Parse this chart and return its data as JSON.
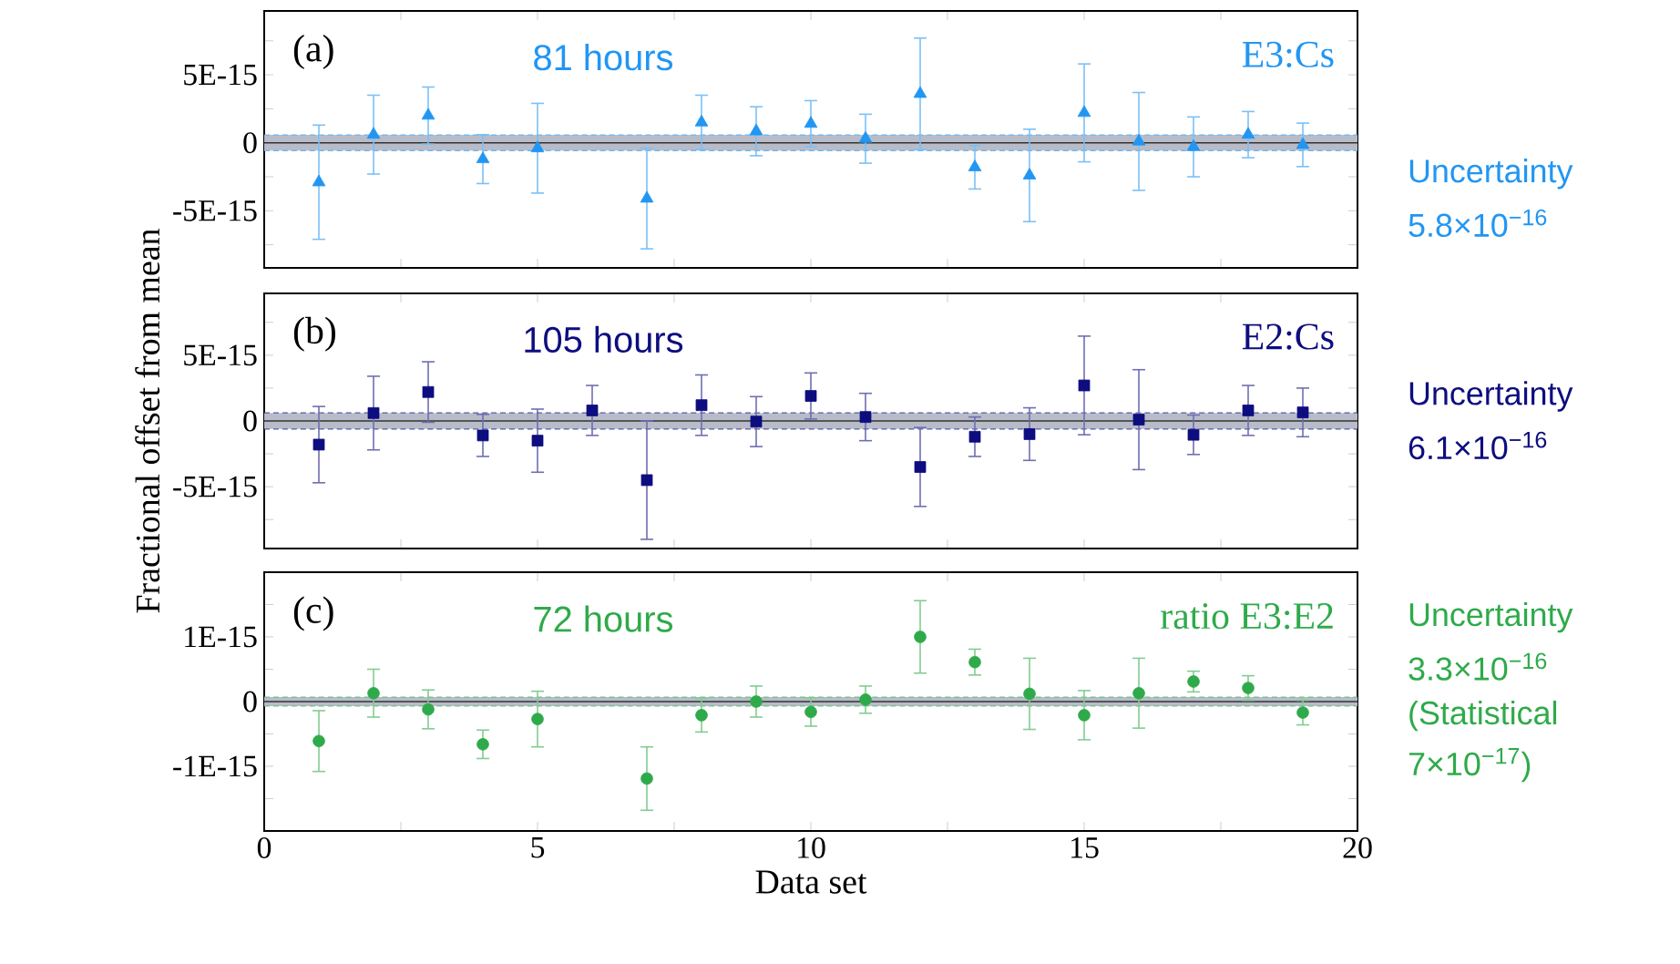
{
  "chart_data": [
    {
      "type": "scatter",
      "marker": "triangle",
      "x": [
        1,
        2,
        3,
        4,
        5,
        6,
        7,
        8,
        9,
        10,
        11,
        12,
        13,
        14,
        15,
        16,
        17,
        18,
        19
      ],
      "series": [
        {
          "name": "E3:Cs",
          "color": "#2196f3",
          "values": [
            -2.9e-15,
            6e-16,
            2e-15,
            -1.2e-15,
            -4e-16,
            null,
            -4.1e-15,
            1.5e-15,
            8.5e-16,
            1.4e-15,
            3e-16,
            3.6e-15,
            -1.8e-15,
            -2.4e-15,
            2.2e-15,
            1e-16,
            -3e-16,
            6e-16,
            -1.5e-16
          ],
          "errors": [
            4.2e-15,
            2.9e-15,
            2.1e-15,
            1.8e-15,
            3.3e-15,
            null,
            3.7e-15,
            2e-15,
            1.8e-15,
            1.7e-15,
            1.8e-15,
            4.1e-15,
            1.6e-15,
            3.4e-15,
            3.6e-15,
            3.6e-15,
            2.2e-15,
            1.7e-15,
            1.6e-15
          ]
        }
      ],
      "xlim": [
        0,
        20
      ],
      "xticks": [
        0,
        {
          "value": 2.5,
          "label": null
        },
        5,
        {
          "value": 7.5,
          "label": null
        },
        10,
        {
          "value": 12.5,
          "label": null
        },
        15,
        {
          "value": 17.5,
          "label": null
        },
        20
      ],
      "ylim": [
        -9.2e-15,
        9.7e-15
      ],
      "yticks": [
        {
          "value": -7.5e-15,
          "label": null
        },
        {
          "value": -5e-15,
          "label": "-5E-15"
        },
        {
          "value": -2.5e-15,
          "label": null
        },
        0,
        {
          "value": 2.5e-15,
          "label": null
        },
        {
          "value": 5e-15,
          "label": "5E-15"
        },
        {
          "value": 7.5e-15,
          "label": null
        }
      ],
      "tick_labels": "y",
      "bands": [
        {
          "axis": "y",
          "from": -5.8e-16,
          "to": 5.8e-16,
          "color": "#b8bcc8"
        }
      ],
      "ref_lines": [
        {
          "axis": "y",
          "value": 0,
          "color": "#333333"
        },
        {
          "axis": "y",
          "value": -5.8e-16,
          "color": "#64b6f7",
          "line_style": "dashed"
        },
        {
          "axis": "y",
          "value": 5.8e-16,
          "color": "#64b6f7",
          "line_style": "dashed"
        }
      ],
      "annotations": [
        "(a)",
        "81 hours",
        "Uncertainty",
        "5.8×10$^{−16}$"
      ]
    },
    {
      "type": "scatter",
      "marker": "square",
      "x": [
        1,
        2,
        3,
        4,
        5,
        6,
        7,
        8,
        9,
        10,
        11,
        12,
        13,
        14,
        15,
        16,
        17,
        18,
        19
      ],
      "ylabel": "Fractional offset from mean",
      "series": [
        {
          "name": "E2:Cs",
          "color": "#0d0d80",
          "values": [
            -1.8e-15,
            6e-16,
            2.2e-15,
            -1.1e-15,
            -1.5e-15,
            8e-16,
            -4.5e-15,
            1.2e-15,
            -5e-17,
            1.9e-15,
            3e-16,
            -3.5e-15,
            -1.2e-15,
            -1e-15,
            2.7e-15,
            1e-16,
            -1.05e-15,
            8e-16,
            6.5e-16
          ],
          "errors": [
            2.9e-15,
            2.8e-15,
            2.3e-15,
            1.6e-15,
            2.4e-15,
            1.9e-15,
            4.5e-15,
            2.3e-15,
            1.9e-15,
            1.75e-15,
            1.8e-15,
            3e-15,
            1.5e-15,
            2e-15,
            3.75e-15,
            3.8e-15,
            1.5e-15,
            1.9e-15,
            1.85e-15
          ]
        }
      ],
      "xlim": [
        0,
        20
      ],
      "xticks": [
        0,
        {
          "value": 2.5,
          "label": null
        },
        5,
        {
          "value": 7.5,
          "label": null
        },
        10,
        {
          "value": 12.5,
          "label": null
        },
        15,
        {
          "value": 17.5,
          "label": null
        },
        20
      ],
      "ylim": [
        -9.7e-15,
        9.7e-15
      ],
      "yticks": [
        {
          "value": -7.5e-15,
          "label": null
        },
        {
          "value": -5e-15,
          "label": "-5E-15"
        },
        {
          "value": -2.5e-15,
          "label": null
        },
        0,
        {
          "value": 2.5e-15,
          "label": null
        },
        {
          "value": 5e-15,
          "label": "5E-15"
        },
        {
          "value": 7.5e-15,
          "label": null
        }
      ],
      "tick_labels": "y",
      "bands": [
        {
          "axis": "y",
          "from": -6.1e-16,
          "to": 6.1e-16,
          "color": "#b8bcc8"
        }
      ],
      "ref_lines": [
        {
          "axis": "y",
          "value": 0,
          "color": "#333333"
        },
        {
          "axis": "y",
          "value": -6.1e-16,
          "color": "#5656a6",
          "line_style": "dashed"
        },
        {
          "axis": "y",
          "value": 6.1e-16,
          "color": "#5656a6",
          "line_style": "dashed"
        }
      ],
      "annotations": [
        "(b)",
        "105 hours",
        "Uncertainty",
        "6.1×10$^{−16}$"
      ]
    },
    {
      "type": "scatter",
      "marker": "circle",
      "x": [
        1,
        2,
        3,
        4,
        5,
        6,
        7,
        8,
        9,
        10,
        11,
        12,
        13,
        14,
        15,
        16,
        17,
        18,
        19
      ],
      "xlabel": "Data set",
      "series": [
        {
          "name": "ratio E3:E2",
          "color": "#2eaa4a",
          "values": [
            -6.1e-16,
            1.3e-16,
            -1.2e-16,
            -6.6e-16,
            -2.7e-16,
            null,
            -1.19e-15,
            -2.1e-16,
            0.0,
            -1.6e-16,
            3e-17,
            1e-15,
            6.1e-16,
            1.2e-16,
            -2.1e-16,
            1.3e-16,
            3.1e-16,
            2.1e-16,
            -1.7e-16
          ],
          "errors": [
            4.7e-16,
            3.7e-16,
            3e-16,
            2.2e-16,
            4.3e-16,
            null,
            4.9e-16,
            2.6e-16,
            2.4e-16,
            2.2e-16,
            2.1e-16,
            5.6e-16,
            2e-16,
            5.5e-16,
            3.8e-16,
            5.4e-16,
            1.6e-16,
            1.9e-16,
            1.9e-16
          ]
        }
      ],
      "xlim": [
        0,
        20
      ],
      "xticks": [
        0,
        {
          "value": 2.5,
          "label": null
        },
        5,
        {
          "value": 7.5,
          "label": null
        },
        10,
        {
          "value": 12.5,
          "label": null
        },
        15,
        {
          "value": 17.5,
          "label": null
        },
        20
      ],
      "ylim": [
        -2e-15,
        2e-15
      ],
      "yticks": [
        {
          "value": -1.5e-15,
          "label": null
        },
        {
          "value": -1e-15,
          "label": "-1E-15"
        },
        {
          "value": -5e-16,
          "label": null
        },
        0,
        {
          "value": 5e-16,
          "label": null
        },
        {
          "value": 1e-15,
          "label": "1E-15"
        },
        {
          "value": 1.5e-15,
          "label": null
        }
      ],
      "bands": [
        {
          "axis": "y",
          "from": -7e-17,
          "to": 7e-17,
          "color": "#b8bcc8"
        }
      ],
      "ref_lines": [
        {
          "axis": "y",
          "value": 0,
          "color": "#333333"
        },
        {
          "axis": "y",
          "value": -7e-17,
          "color": "#6dc480",
          "line_style": "dashed"
        },
        {
          "axis": "y",
          "value": 7e-17,
          "color": "#6dc480",
          "line_style": "dashed"
        }
      ],
      "annotations": [
        "(c)",
        "72 hours",
        "Uncertainty",
        "3.3×10$^{−16}$",
        "(Statistical",
        "7×10$^{−17}$)"
      ]
    }
  ]
}
